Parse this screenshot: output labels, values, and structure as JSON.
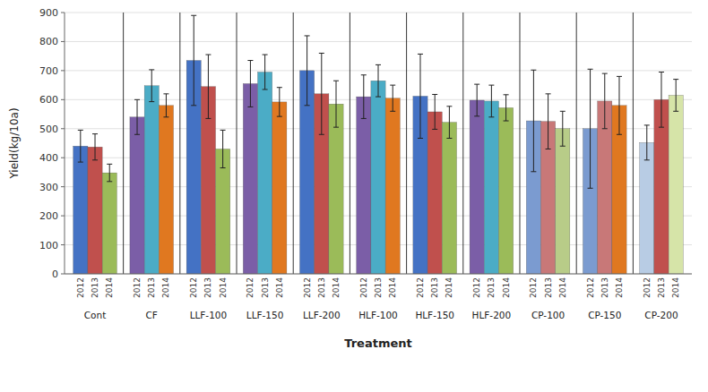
{
  "chart_data": {
    "type": "bar",
    "categories": [
      "Cont",
      "CF",
      "LLF-100",
      "LLF-150",
      "LLF-200",
      "HLF-100",
      "HLF-150",
      "HLF-200",
      "CP-100",
      "CP-150",
      "CP-200"
    ],
    "series": [
      {
        "name": "2012",
        "values": [
          440,
          540,
          735,
          655,
          700,
          610,
          612,
          598,
          527,
          500,
          452
        ],
        "errors": [
          55,
          60,
          155,
          80,
          120,
          75,
          145,
          55,
          175,
          205,
          60
        ],
        "colors": [
          "#4472C4",
          "#7B5EA7",
          "#4472C4",
          "#7B5EA7",
          "#4472C4",
          "#7B5EA7",
          "#4472C4",
          "#7B5EA7",
          "#7B9BD0",
          "#7B9BD0",
          "#B8CCE4"
        ]
      },
      {
        "name": "2013",
        "values": [
          437,
          648,
          645,
          695,
          620,
          665,
          558,
          595,
          525,
          595,
          600
        ],
        "errors": [
          45,
          55,
          110,
          60,
          140,
          55,
          60,
          55,
          95,
          95,
          95
        ],
        "colors": [
          "#C0504D",
          "#4BACC6",
          "#C0504D",
          "#4BACC6",
          "#C0504D",
          "#4BACC6",
          "#C0504D",
          "#4BACC6",
          "#C87878",
          "#C87878",
          "#C0504D"
        ]
      },
      {
        "name": "2014",
        "values": [
          348,
          580,
          430,
          592,
          585,
          605,
          522,
          572,
          500,
          580,
          615
        ],
        "errors": [
          30,
          40,
          65,
          50,
          80,
          45,
          55,
          45,
          60,
          100,
          55
        ],
        "colors": [
          "#9BBB59",
          "#E07820",
          "#9BBB59",
          "#E07820",
          "#9BBB59",
          "#E07820",
          "#9BBB59",
          "#9BBB59",
          "#B8CC88",
          "#E07820",
          "#D6E4A8"
        ]
      }
    ],
    "xlabel": "Treatment",
    "ylabel": "Yield(kg/10a)",
    "ylim": [
      0,
      900
    ],
    "yticks": [
      0,
      100,
      200,
      300,
      400,
      500,
      600,
      700,
      800,
      900
    ],
    "grid": true
  }
}
